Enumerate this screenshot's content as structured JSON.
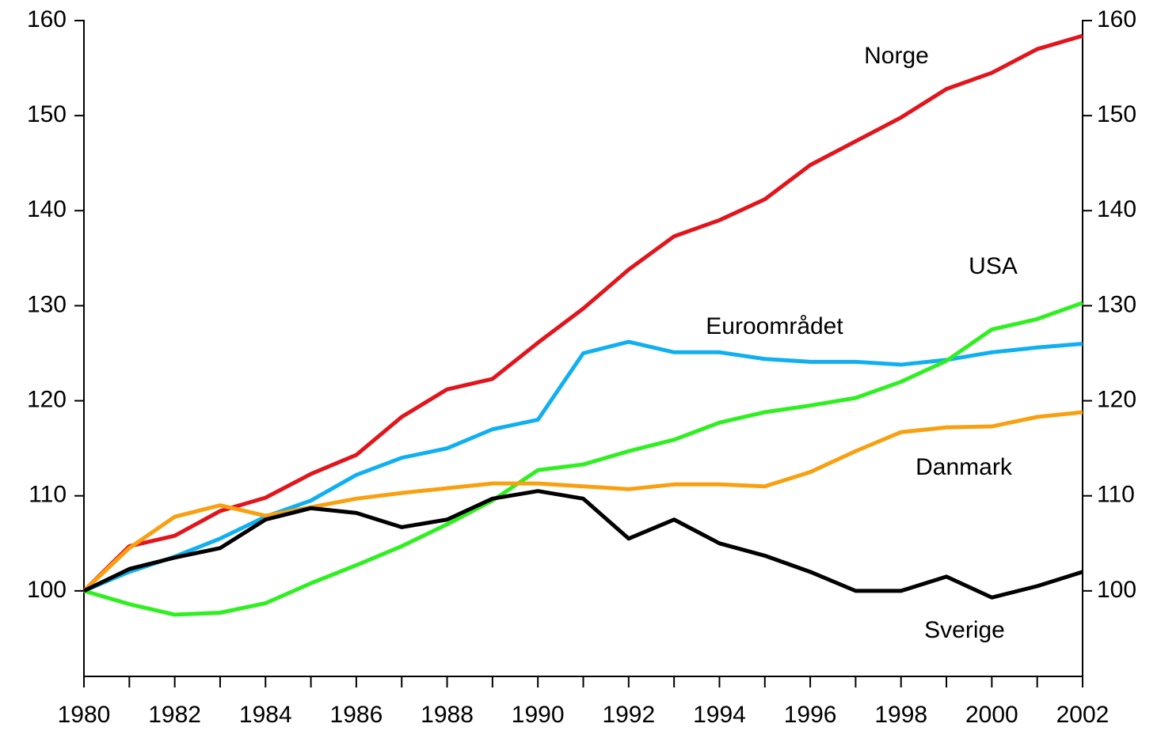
{
  "chart_data": {
    "type": "line",
    "x": [
      1980,
      1981,
      1982,
      1983,
      1984,
      1985,
      1986,
      1987,
      1988,
      1989,
      1990,
      1991,
      1992,
      1993,
      1994,
      1995,
      1996,
      1997,
      1998,
      1999,
      2000,
      2001,
      2002
    ],
    "series": [
      {
        "name": "Norge",
        "color": "#e2141c",
        "values": [
          100,
          104.7,
          105.8,
          108.4,
          109.8,
          112.3,
          114.3,
          118.3,
          121.2,
          122.3,
          126.1,
          129.7,
          133.8,
          137.3,
          139,
          141.2,
          144.8,
          147.3,
          149.8,
          152.8,
          154.5,
          157,
          158.4
        ]
      },
      {
        "name": "Euroområdet",
        "color": "#10b0f0",
        "values": [
          100,
          102,
          103.6,
          105.5,
          107.8,
          109.5,
          112.2,
          114,
          115,
          117,
          118,
          125,
          126.2,
          125.1,
          125.1,
          124.4,
          124.1,
          124.1,
          123.8,
          124.3,
          125.1,
          125.6,
          126
        ]
      },
      {
        "name": "USA",
        "color": "#2ef020",
        "values": [
          100,
          98.6,
          97.5,
          97.7,
          98.7,
          100.8,
          102.7,
          104.7,
          107,
          109.5,
          112.7,
          113.3,
          114.7,
          115.9,
          117.7,
          118.8,
          119.5,
          120.3,
          122,
          124.2,
          127.5,
          128.6,
          130.3
        ]
      },
      {
        "name": "Danmark",
        "color": "#f8a010",
        "values": [
          100,
          104.5,
          107.8,
          109,
          107.9,
          108.8,
          109.7,
          110.3,
          110.8,
          111.3,
          111.3,
          111,
          110.7,
          111.2,
          111.2,
          111,
          112.5,
          114.7,
          116.7,
          117.2,
          117.3,
          118.3,
          118.8
        ]
      },
      {
        "name": "Sverige",
        "color": "#000000",
        "values": [
          100,
          102.3,
          103.5,
          104.5,
          107.5,
          108.7,
          108.2,
          106.7,
          107.5,
          109.7,
          110.5,
          109.7,
          105.5,
          107.5,
          105,
          103.7,
          102,
          100,
          100,
          101.5,
          99.3,
          100.5,
          102
        ]
      }
    ],
    "xlim": [
      1980,
      2002
    ],
    "xticks": [
      1980,
      1982,
      1984,
      1986,
      1988,
      1990,
      1992,
      1994,
      1996,
      1998,
      2000,
      2002
    ],
    "xminor_ticks": [
      1981,
      1983,
      1985,
      1987,
      1989,
      1991,
      1993,
      1995,
      1997,
      1999,
      2001
    ],
    "ylim": [
      91,
      160
    ],
    "yticks": [
      100,
      110,
      120,
      130,
      140,
      150,
      160
    ],
    "y2lim": [
      91,
      160
    ],
    "y2ticks": [
      100,
      110,
      120,
      130,
      140,
      150,
      160
    ]
  }
}
